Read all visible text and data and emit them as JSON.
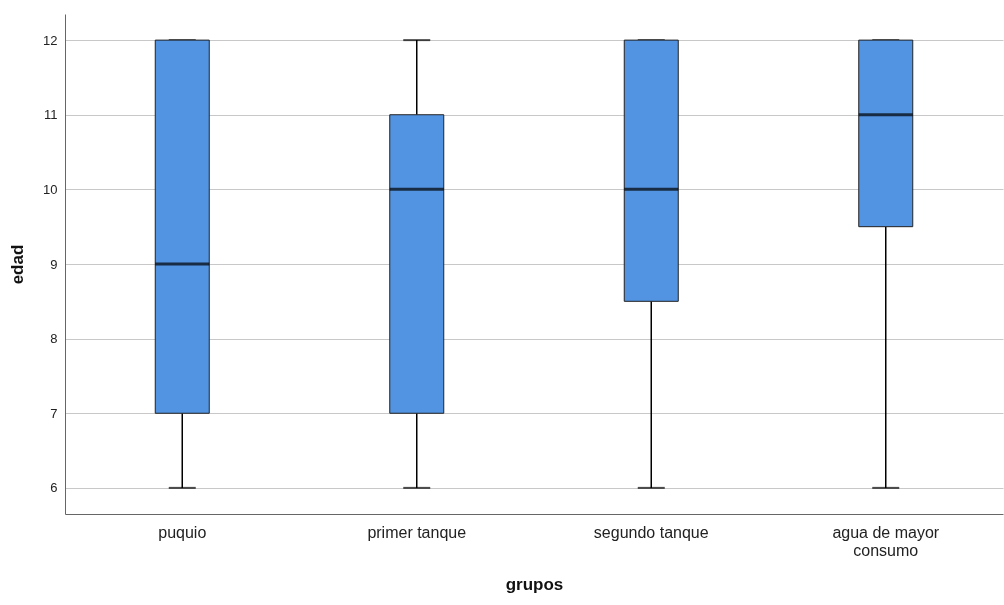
{
  "chart_data": {
    "type": "box",
    "xlabel": "grupos",
    "ylabel": "edad",
    "categories": [
      "puquio",
      "primer tanque",
      "segundo tanque",
      "agua de mayor consumo"
    ],
    "series": [
      {
        "color": "#5294e2",
        "boxes": [
          {
            "low": 6,
            "q1": 7,
            "median": 9,
            "q3": 12,
            "high": 12
          },
          {
            "low": 6,
            "q1": 7,
            "median": 10,
            "q3": 11,
            "high": 12
          },
          {
            "low": 6,
            "q1": 8.5,
            "median": 10,
            "q3": 12,
            "high": 12
          },
          {
            "low": 6,
            "q1": 9.5,
            "median": 11,
            "q3": 12,
            "high": 12
          }
        ]
      }
    ],
    "ylim": [
      5.65,
      12.35
    ],
    "yticks": [
      6,
      7,
      8,
      9,
      10,
      11,
      12
    ],
    "grid": "y"
  }
}
